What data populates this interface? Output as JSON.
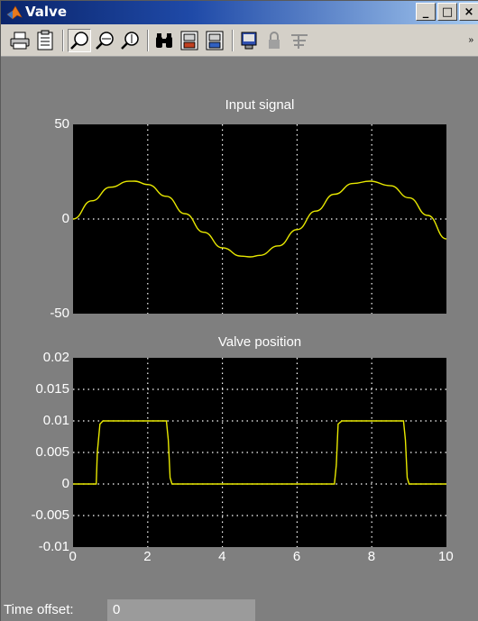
{
  "window": {
    "title": "Valve",
    "controls": {
      "minimize": "_",
      "maximize": "□",
      "close": "×"
    }
  },
  "toolbar": {
    "items": [
      {
        "name": "print-icon"
      },
      {
        "name": "parameters-icon"
      },
      {
        "name": "zoom-icon",
        "pressed": true
      },
      {
        "name": "zoom-x-icon"
      },
      {
        "name": "zoom-y-icon"
      },
      {
        "name": "autoscale-icon"
      },
      {
        "name": "save-axes-icon"
      },
      {
        "name": "restore-axes-icon"
      },
      {
        "name": "floating-scope-icon"
      },
      {
        "name": "lock-axes-icon"
      },
      {
        "name": "signal-selection-icon"
      }
    ],
    "overflow": "»"
  },
  "chart_data": [
    {
      "type": "line",
      "title": "Input signal",
      "xlim": [
        0,
        10
      ],
      "ylim": [
        -50,
        50
      ],
      "yticks": [
        "50",
        "0",
        "-50"
      ],
      "xticks": [],
      "grid": true,
      "line_color": "#e8e800",
      "series": [
        {
          "x": [
            0,
            0.5,
            1,
            1.5,
            1.65,
            2,
            2.5,
            3,
            3.5,
            4,
            4.5,
            4.75,
            5,
            5.5,
            6,
            6.5,
            7,
            7.5,
            7.95,
            8.5,
            9,
            9.5,
            10
          ],
          "values": [
            0,
            9.6,
            16.8,
            19.95,
            20,
            18.2,
            12,
            2.8,
            -7,
            -15.2,
            -19.6,
            -20,
            -19.2,
            -14.2,
            -5.6,
            4.2,
            13.1,
            18.8,
            20,
            17.6,
            11.2,
            1.9,
            -10.5
          ]
        }
      ]
    },
    {
      "type": "line",
      "title": "Valve position",
      "xlim": [
        0,
        10
      ],
      "ylim": [
        -0.01,
        0.02
      ],
      "yticks": [
        "0.02",
        "0.015",
        "0.01",
        "0.005",
        "0",
        "-0.005",
        "-0.01"
      ],
      "xticks": [
        "0",
        "2",
        "4",
        "6",
        "8",
        "10"
      ],
      "grid": true,
      "line_color": "#e8e800",
      "series": [
        {
          "x": [
            0,
            0.62,
            0.65,
            0.72,
            0.8,
            2.5,
            2.55,
            2.6,
            2.65,
            7.0,
            7.05,
            7.1,
            7.2,
            8.85,
            8.9,
            8.95,
            9.0,
            10
          ],
          "values": [
            0,
            0,
            0.005,
            0.0095,
            0.01,
            0.01,
            0.007,
            0.001,
            0,
            0,
            0.003,
            0.0095,
            0.01,
            0.01,
            0.007,
            0.001,
            0,
            0
          ]
        }
      ]
    }
  ],
  "status": {
    "label": "Time offset:",
    "value": "0"
  }
}
